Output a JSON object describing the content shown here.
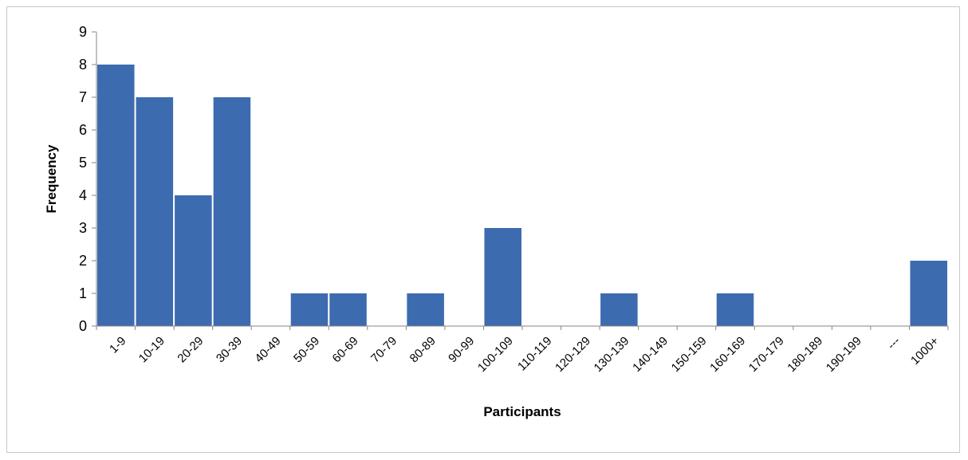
{
  "chart_data": {
    "type": "bar",
    "title": "",
    "xlabel": "Participants",
    "ylabel": "Frequency",
    "ylim": [
      0,
      9
    ],
    "yticks": [
      0,
      1,
      2,
      3,
      4,
      5,
      6,
      7,
      8,
      9
    ],
    "grid": false,
    "legend": "none",
    "bar_color": "#3d6baf",
    "categories": [
      "1-9",
      "10-19",
      "20-29",
      "30-39",
      "40-49",
      "50-59",
      "60-69",
      "70-79",
      "80-89",
      "90-99",
      "100-109",
      "110-119",
      "120-129",
      "130-139",
      "140-149",
      "150-159",
      "160-169",
      "170-179",
      "180-189",
      "190-199",
      "---",
      "1000+"
    ],
    "values": [
      8,
      7,
      4,
      7,
      0,
      1,
      1,
      0,
      1,
      0,
      3,
      0,
      0,
      1,
      0,
      0,
      1,
      0,
      0,
      0,
      0,
      2
    ]
  }
}
